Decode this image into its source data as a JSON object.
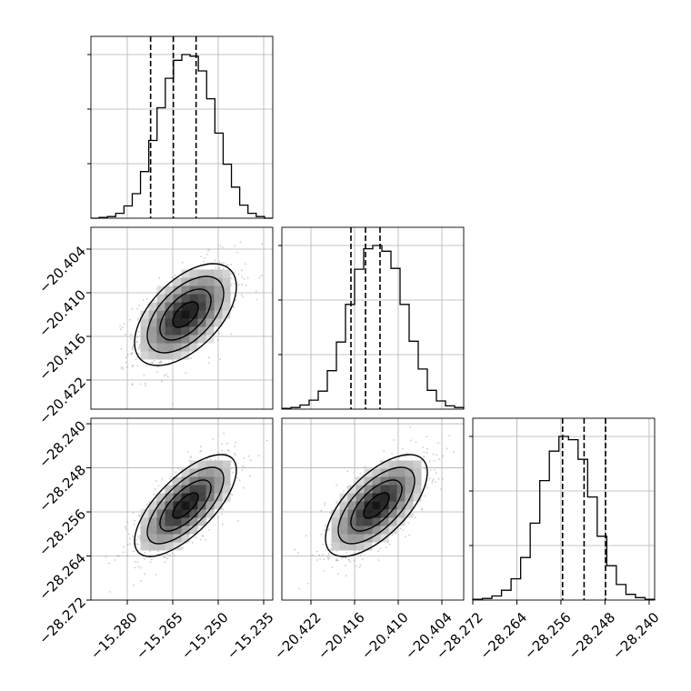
{
  "chart_data": {
    "type": "corner",
    "parameters": [
      {
        "ticks": [
          -15.28,
          -15.265,
          -15.25,
          -15.235
        ],
        "tick_labels": [
          "−15.280",
          "−15.265",
          "−15.250",
          "−15.235"
        ],
        "range": [
          -15.292,
          -15.232
        ],
        "quantiles": [
          -15.2723,
          -15.2648,
          -15.2573
        ],
        "hist_counts": [
          0,
          1,
          2,
          6,
          15,
          30,
          57,
          95,
          135,
          171,
          193,
          200,
          198,
          180,
          146,
          104,
          66,
          38,
          16,
          6,
          2,
          0
        ]
      },
      {
        "ticks": [
          -20.422,
          -20.416,
          -20.41,
          -20.404
        ],
        "tick_labels": [
          "−20.422",
          "−20.416",
          "−20.410",
          "−20.404"
        ],
        "range": [
          -20.426,
          -20.401
        ],
        "quantiles": [
          -20.4165,
          -20.4145,
          -20.4125
        ],
        "hist_counts": [
          1,
          2,
          5,
          11,
          22,
          47,
          82,
          128,
          171,
          196,
          200,
          193,
          172,
          128,
          83,
          49,
          23,
          10,
          4,
          2
        ]
      },
      {
        "ticks": [
          -28.272,
          -28.264,
          -28.256,
          -28.248,
          -28.24
        ],
        "tick_labels": [
          "−28.272",
          "−28.264",
          "−28.256",
          "−28.248",
          "−28.240"
        ],
        "range": [
          -28.272,
          -28.239
        ],
        "quantiles": [
          -28.2557,
          -28.2518,
          -28.2479
        ],
        "hist_counts": [
          1,
          2,
          5,
          12,
          26,
          52,
          94,
          146,
          182,
          200,
          196,
          172,
          126,
          78,
          42,
          19,
          7,
          3,
          1
        ]
      }
    ],
    "correlations": {
      "1-0": 0.55,
      "2-0": 0.7,
      "2-1": 0.65
    },
    "contour_levels": [
      0.5,
      1.0,
      1.5,
      2.0
    ],
    "colors": {
      "line": "#000000",
      "grid": "#b0b0b0",
      "points": "#8c8c8c",
      "density_max": "#000000",
      "density_min": "#ffffff"
    },
    "grid": true,
    "title": "",
    "labels": []
  }
}
